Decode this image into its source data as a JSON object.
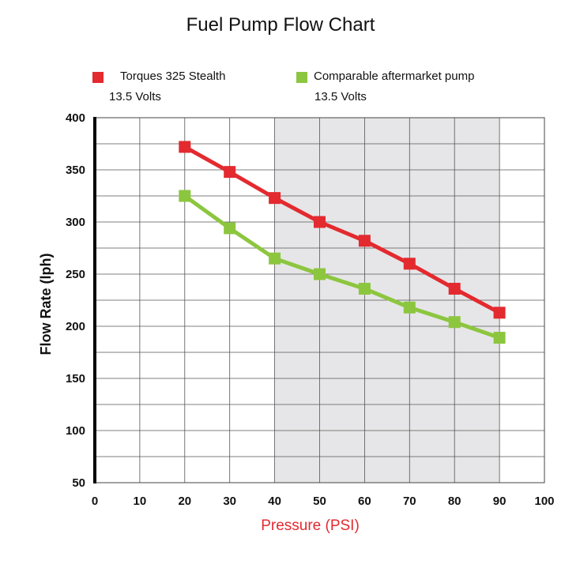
{
  "chart_data": {
    "type": "line",
    "title": "Fuel Pump Flow Chart",
    "xlabel": "Pressure (PSI)",
    "ylabel": "Flow Rate (lph)",
    "xlim": [
      0,
      100
    ],
    "ylim": [
      50,
      400
    ],
    "xticks": [
      "0",
      "10",
      "20",
      "30",
      "40",
      "50",
      "60",
      "70",
      "80",
      "90",
      "100"
    ],
    "yticks": [
      "50",
      "100",
      "150",
      "200",
      "250",
      "300",
      "350",
      "400"
    ],
    "shaded_range": [
      40,
      90
    ],
    "grid": true,
    "series": [
      {
        "name": "Torques 325 Stealth",
        "sub": "13.5 Volts",
        "color": "#e32a2f",
        "x": [
          20,
          30,
          40,
          50,
          60,
          70,
          80,
          90
        ],
        "values": [
          372,
          348,
          323,
          300,
          282,
          260,
          236,
          213
        ]
      },
      {
        "name": "Comparable aftermarket pump",
        "sub": "13.5 Volts",
        "color": "#8cc63f",
        "x": [
          20,
          30,
          40,
          50,
          60,
          70,
          80,
          90
        ],
        "values": [
          325,
          294,
          265,
          250,
          236,
          218,
          204,
          189
        ]
      }
    ]
  }
}
